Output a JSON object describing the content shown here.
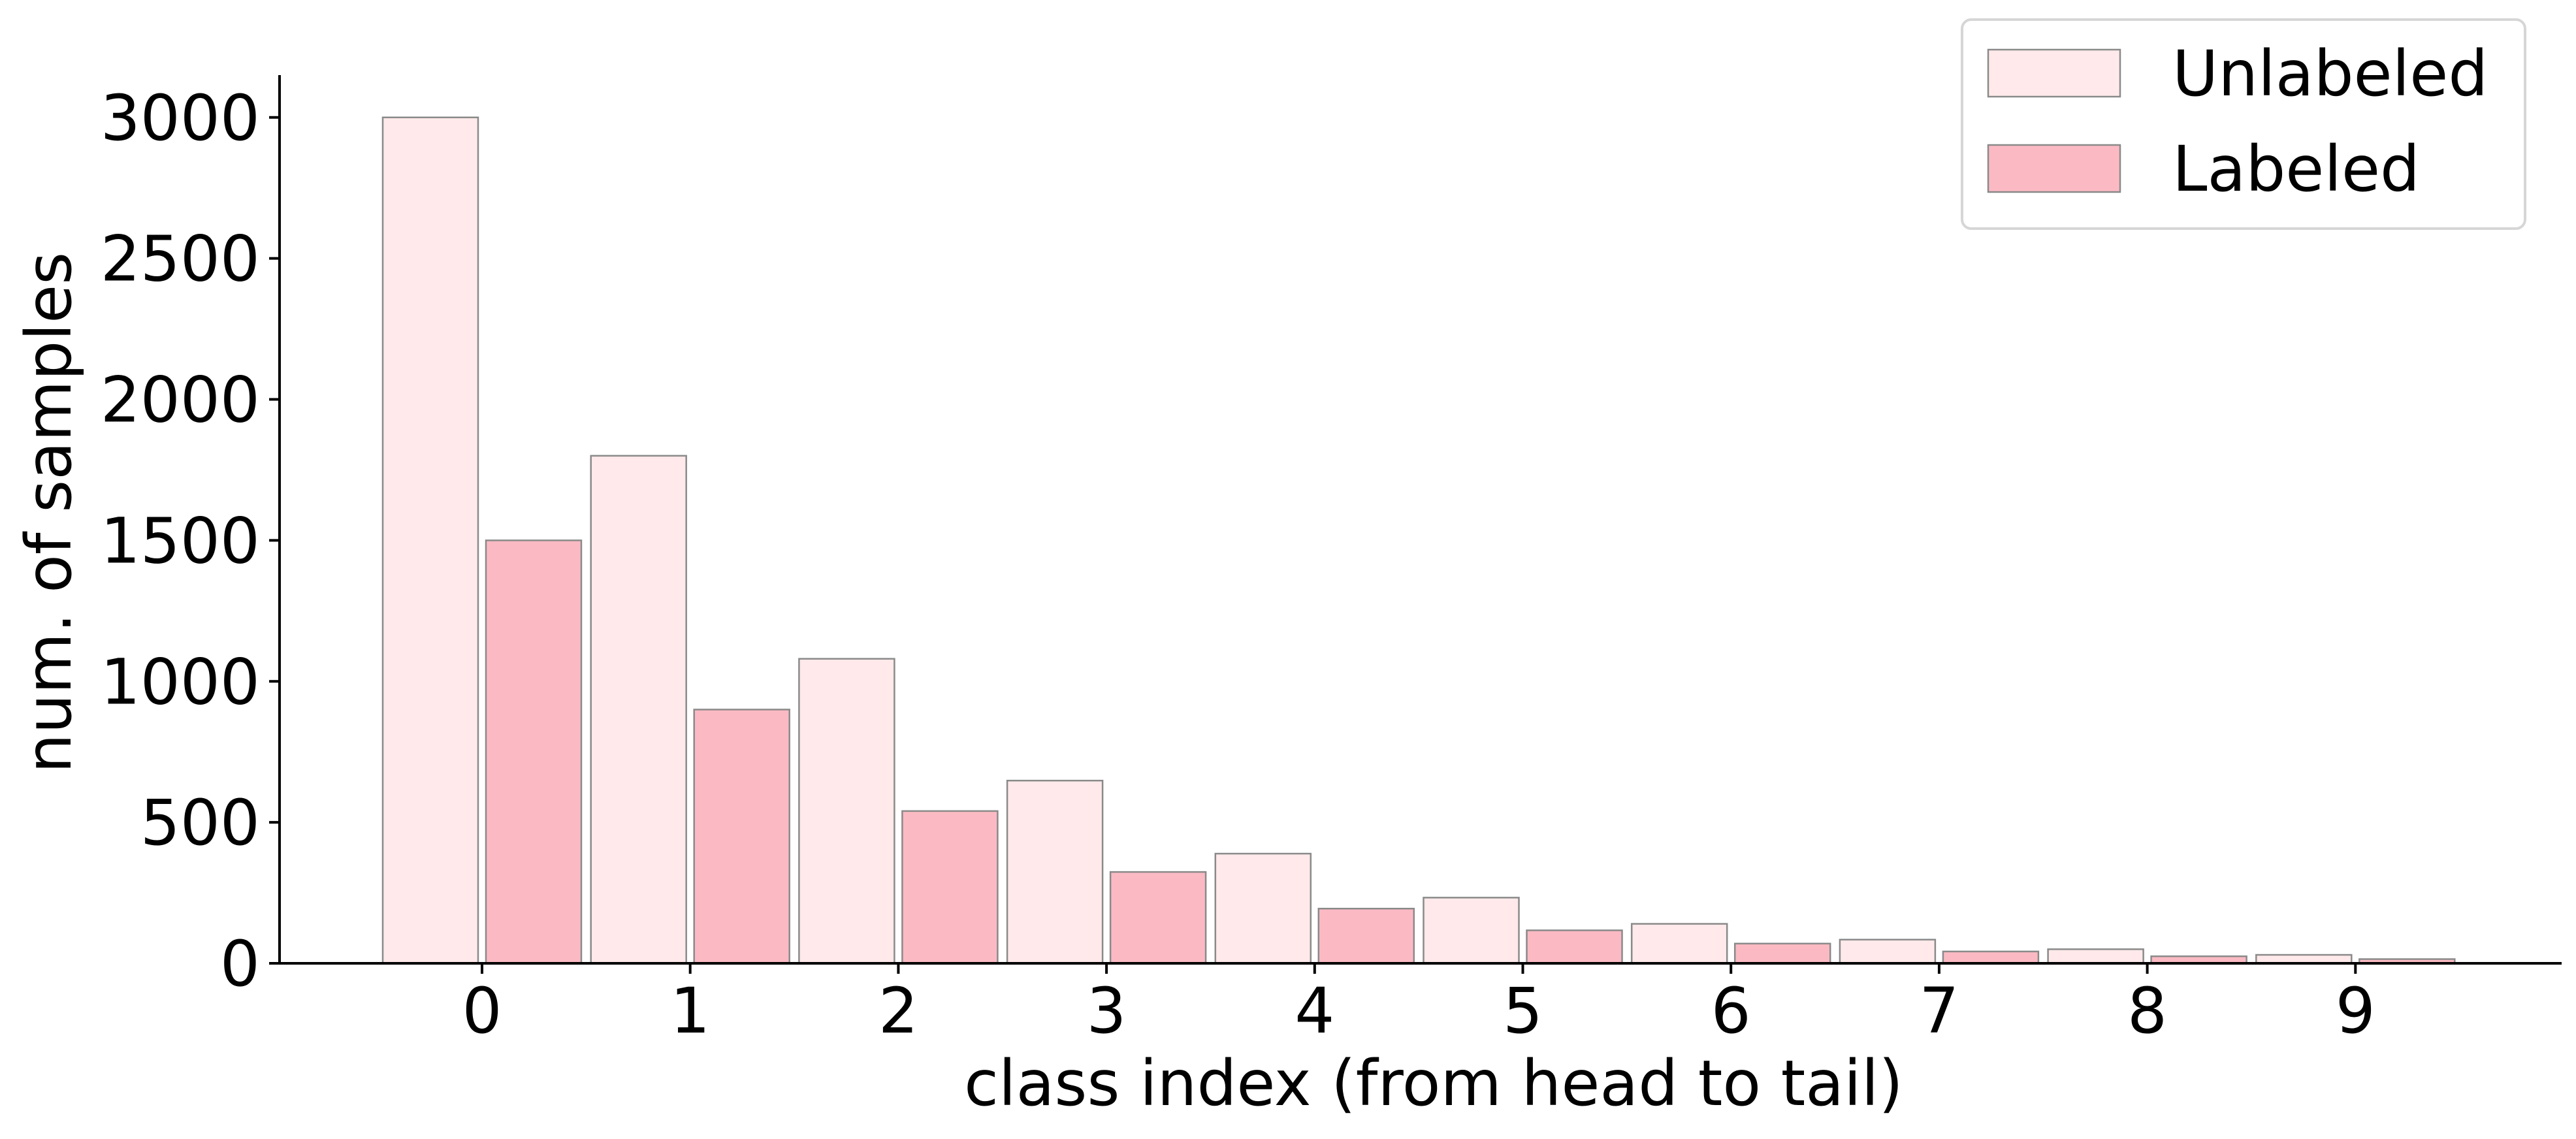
{
  "chart_data": {
    "type": "bar",
    "categories": [
      "0",
      "1",
      "2",
      "3",
      "4",
      "5",
      "6",
      "7",
      "8",
      "9"
    ],
    "series": [
      {
        "name": "Unlabeled",
        "color": "#ffe9ea",
        "values": [
          3000,
          1800,
          1080,
          648,
          389,
          233,
          140,
          84,
          50,
          30
        ]
      },
      {
        "name": "Labeled",
        "color": "#fbbac3",
        "values": [
          1500,
          900,
          540,
          324,
          194,
          117,
          70,
          42,
          25,
          15
        ]
      }
    ],
    "title": "",
    "xlabel": "class index (from head to tail)",
    "ylabel": "num. of samples",
    "ylim": [
      0,
      3150
    ],
    "yticks": [
      0,
      500,
      1000,
      1500,
      2000,
      2500,
      3000
    ],
    "grid": false,
    "legend_position": "top-right"
  }
}
